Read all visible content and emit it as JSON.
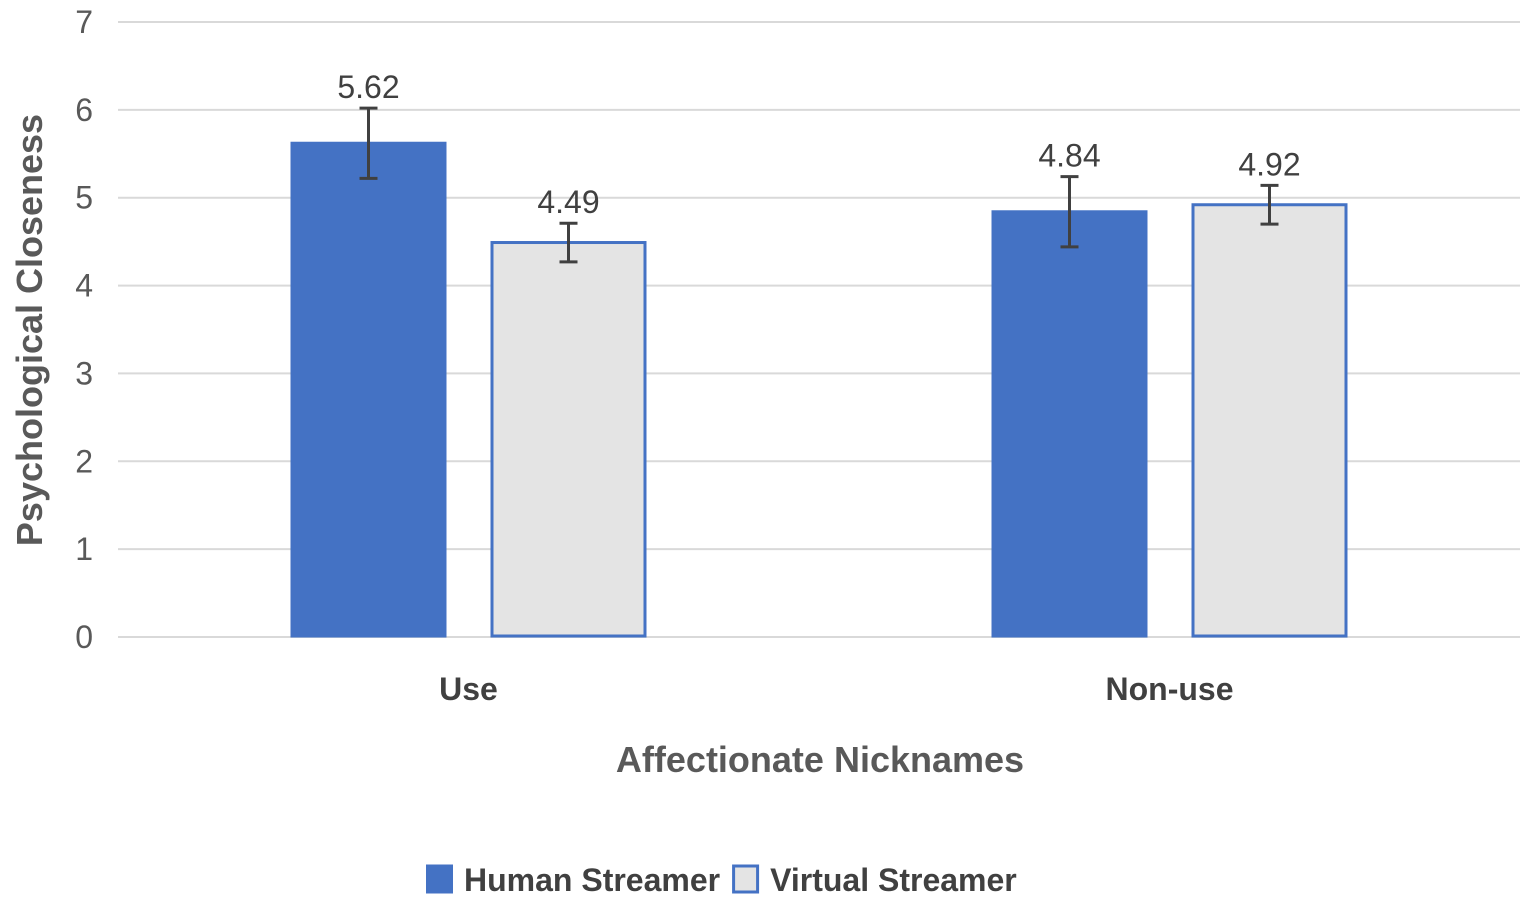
{
  "chart_data": {
    "type": "bar",
    "xlabel": "Affectionate Nicknames",
    "ylabel": "Psychological Closeness",
    "ylim": [
      0,
      7
    ],
    "yticks": [
      0,
      1,
      2,
      3,
      4,
      5,
      6,
      7
    ],
    "grid": true,
    "legend_position": "bottom",
    "categories": [
      "Use",
      "Non-use"
    ],
    "series": [
      {
        "name": "Human Streamer",
        "values": [
          5.62,
          4.84
        ],
        "data_labels": [
          "5.62",
          "4.84"
        ],
        "error": [
          0.4,
          0.4
        ],
        "color": "#4472C4",
        "stroke": "#4472C4"
      },
      {
        "name": "Virtual  Streamer",
        "values": [
          4.49,
          4.92
        ],
        "data_labels": [
          "4.49",
          "4.92"
        ],
        "error": [
          0.22,
          0.22
        ],
        "color": "#E4E4E4",
        "stroke": "#4472C4"
      }
    ],
    "colors": {
      "grid": "#D9D9D9",
      "error_bar": "#404040"
    }
  }
}
